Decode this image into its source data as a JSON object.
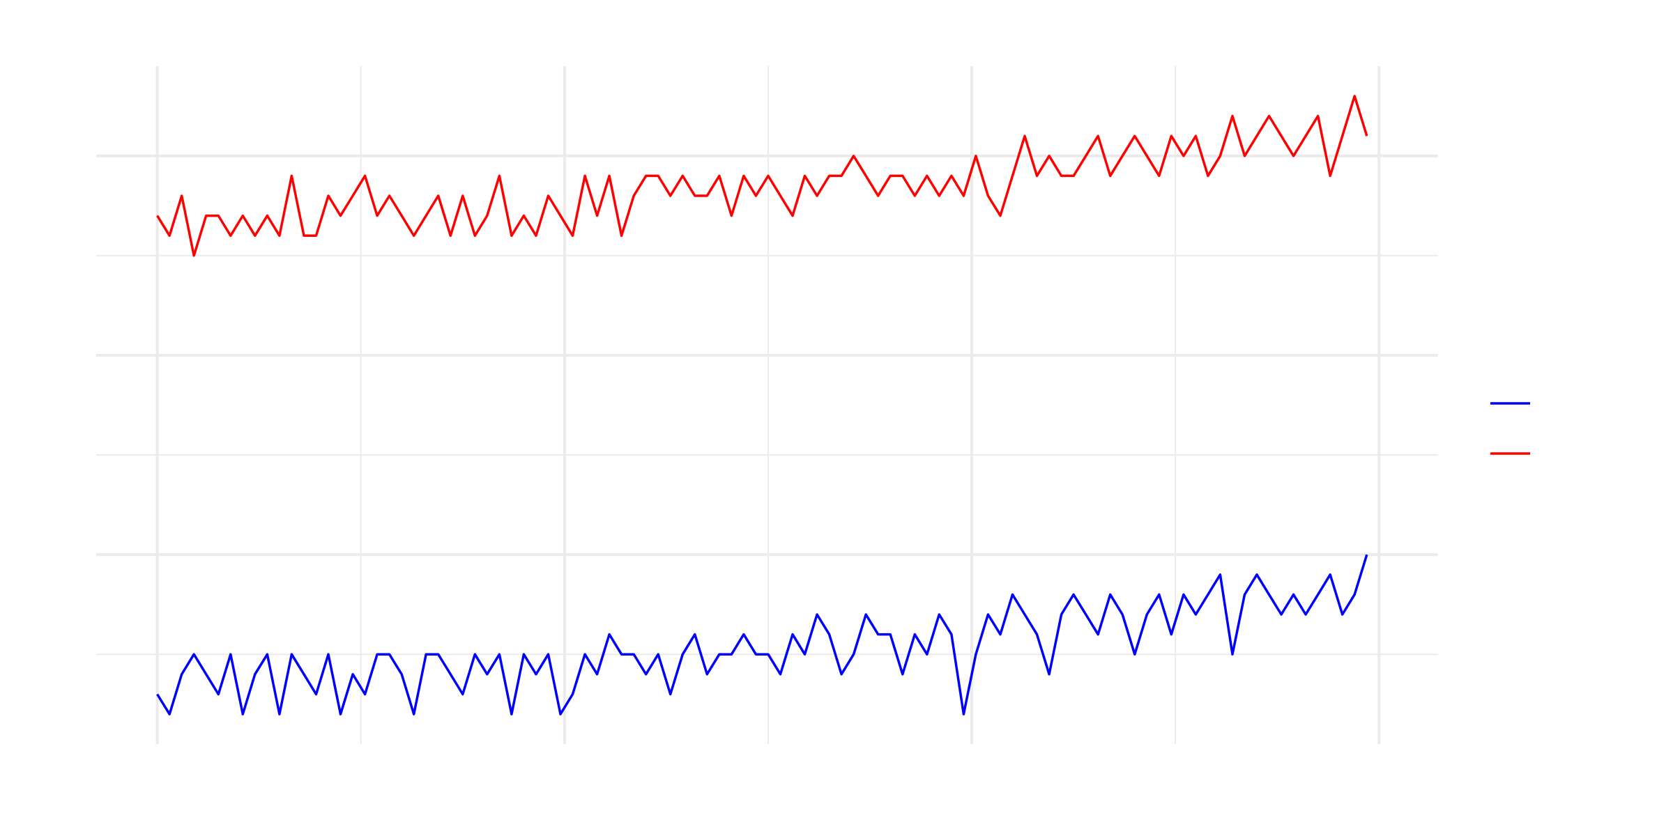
{
  "chart_data": {
    "type": "line",
    "x": [
      0,
      6,
      12,
      18,
      24,
      30,
      36,
      42,
      48,
      54,
      60,
      66,
      72,
      78,
      84,
      90,
      96,
      102,
      108,
      114,
      120,
      126,
      132,
      138,
      144,
      150,
      156,
      162,
      168,
      174,
      180,
      186,
      192,
      198,
      204,
      210,
      216,
      222,
      228,
      234,
      240,
      246,
      252,
      258,
      264,
      270,
      276,
      282,
      288,
      294,
      300,
      306,
      312,
      318,
      324,
      330,
      336,
      342,
      348,
      354,
      360,
      366,
      372,
      378,
      384,
      390,
      396,
      402,
      408,
      414,
      420,
      426,
      432,
      438,
      444,
      450,
      456,
      462,
      468,
      474,
      480,
      486,
      492,
      498,
      504,
      510,
      516,
      522,
      528,
      534,
      540,
      546,
      552,
      558,
      564,
      570,
      576,
      582,
      588,
      594
    ],
    "series": [
      {
        "color": "#0000ff",
        "values": [
          13,
          12,
          14,
          15,
          14,
          13,
          15,
          12,
          14,
          15,
          12,
          15,
          14,
          13,
          15,
          12,
          14,
          13,
          15,
          15,
          14,
          12,
          15,
          15,
          14,
          13,
          15,
          14,
          15,
          12,
          15,
          14,
          15,
          12,
          13,
          15,
          14,
          16,
          15,
          15,
          14,
          15,
          13,
          15,
          16,
          14,
          15,
          15,
          16,
          15,
          15,
          14,
          16,
          15,
          17,
          16,
          14,
          15,
          17,
          16,
          16,
          14,
          16,
          15,
          17,
          16,
          12,
          15,
          17,
          16,
          18,
          17,
          16,
          14,
          17,
          18,
          17,
          16,
          18,
          17,
          15,
          17,
          18,
          16,
          18,
          17,
          18,
          19,
          15,
          18,
          19,
          18,
          17,
          18,
          17,
          18,
          19,
          17,
          18,
          20
        ]
      },
      {
        "color": "#ff0000",
        "values": [
          37,
          36,
          38,
          35,
          37,
          37,
          36,
          37,
          36,
          37,
          36,
          39,
          36,
          36,
          38,
          37,
          38,
          39,
          37,
          38,
          37,
          36,
          37,
          38,
          36,
          38,
          36,
          37,
          39,
          36,
          37,
          36,
          38,
          37,
          36,
          39,
          37,
          39,
          36,
          38,
          39,
          39,
          38,
          39,
          38,
          38,
          39,
          37,
          39,
          38,
          39,
          38,
          37,
          39,
          38,
          39,
          39,
          40,
          39,
          38,
          39,
          39,
          38,
          39,
          38,
          39,
          38,
          40,
          38,
          37,
          39,
          41,
          39,
          40,
          39,
          39,
          40,
          41,
          39,
          40,
          41,
          40,
          39,
          41,
          40,
          41,
          39,
          40,
          42,
          40,
          41,
          42,
          41,
          40,
          41,
          42,
          39,
          41,
          43,
          41
        ]
      }
    ],
    "xlim": [
      -30,
      629
    ],
    "ylim": [
      10.5,
      44.5
    ],
    "xticks": [
      0,
      200,
      400,
      600
    ],
    "xticks_minor": [
      100,
      300,
      500
    ],
    "yticks": [
      20,
      30,
      40
    ],
    "yticks_minor": [
      15,
      25,
      35
    ],
    "grid": true,
    "legend": "right"
  }
}
